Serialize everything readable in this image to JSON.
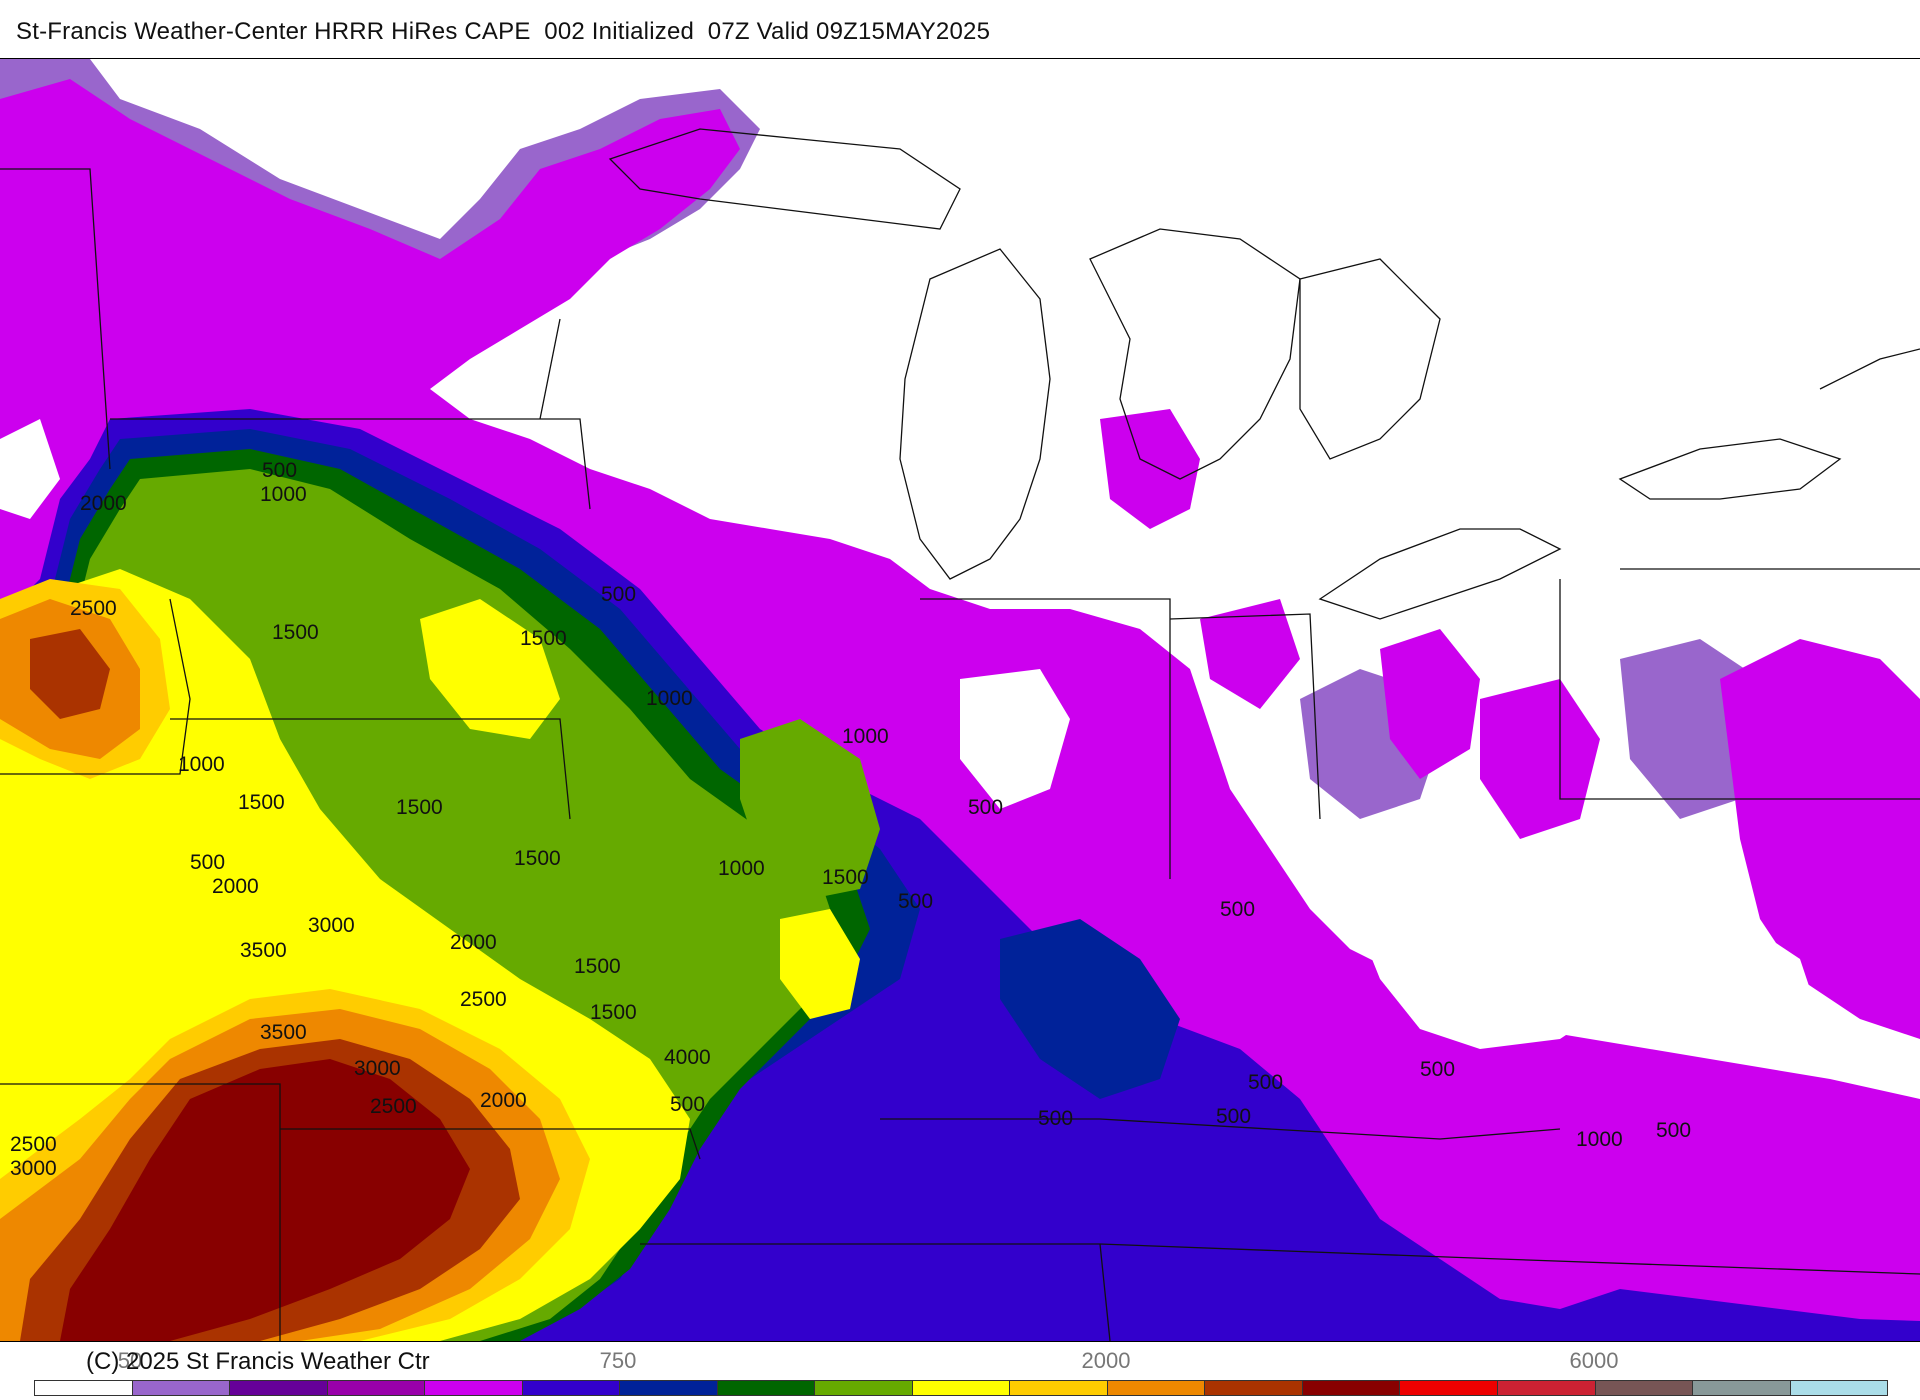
{
  "title": "St-Francis Weather-Center HRRR HiRes CAPE  002 Initialized  07Z Valid 09Z15MAY2025",
  "copyright": "(C) 2025 St Francis Weather Ctr",
  "contour_labels": [
    "500",
    "1000",
    "1500",
    "2000",
    "2500",
    "3000",
    "3500",
    "4000"
  ],
  "colorbar": {
    "tick_labels": [
      "50",
      "750",
      "2000",
      "6000"
    ],
    "colors": [
      "#ffffff",
      "#9966cc",
      "#660099",
      "#9900aa",
      "#cc00ee",
      "#3300cc",
      "#002299",
      "#006600",
      "#66aa00",
      "#ffff00",
      "#ffcc00",
      "#ee8800",
      "#aa3300",
      "#880000",
      "#ee0000",
      "#cc2233",
      "#775555",
      "#889999",
      "#aadde8"
    ]
  }
}
